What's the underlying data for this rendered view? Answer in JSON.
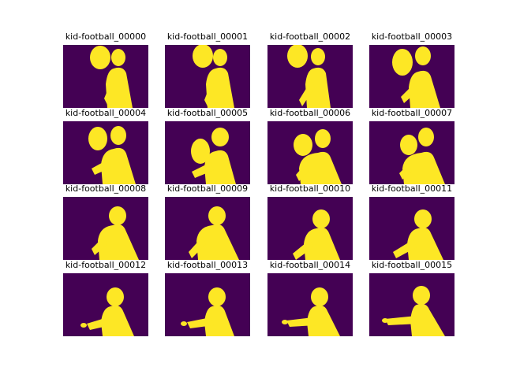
{
  "colors": {
    "background": "#440154",
    "foreground": "#fde725"
  },
  "frames": [
    {
      "title": "kid-football_00000",
      "pose": {
        "ball": [
          47,
          16,
          13,
          15
        ],
        "head": [
          70,
          16,
          9,
          11
        ],
        "body": [
          56,
          30,
          88,
          80
        ],
        "arm_to": [
          52,
          68
        ],
        "hand_to": null
      }
    },
    {
      "title": "kid-football_00001",
      "pose": {
        "ball": [
          48,
          14,
          13,
          15
        ],
        "head": [
          70,
          16,
          9,
          11
        ],
        "body": [
          54,
          30,
          88,
          80
        ],
        "arm_to": [
          50,
          70
        ],
        "hand_to": null
      }
    },
    {
      "title": "kid-football_00002",
      "pose": {
        "ball": [
          38,
          14,
          13,
          15
        ],
        "head": [
          64,
          15,
          9,
          11
        ],
        "body": [
          50,
          30,
          80,
          80
        ],
        "arm_to": [
          40,
          70
        ],
        "hand_to": null
      }
    },
    {
      "title": "kid-football_00003",
      "pose": {
        "ball": [
          42,
          22,
          13,
          17
        ],
        "head": [
          68,
          14,
          10,
          12
        ],
        "body": [
          52,
          34,
          90,
          80
        ],
        "arm_to": [
          40,
          66
        ],
        "hand_to": null
      }
    },
    {
      "title": "kid-football_00004",
      "pose": {
        "ball": [
          44,
          22,
          12,
          15
        ],
        "head": [
          70,
          18,
          10,
          12
        ],
        "body": [
          50,
          35,
          92,
          80
        ],
        "arm_to": [
          36,
          60
        ],
        "hand_to": null
      }
    },
    {
      "title": "kid-football_00005",
      "pose": {
        "ball": [
          45,
          38,
          12,
          16
        ],
        "head": [
          70,
          20,
          11,
          12
        ],
        "body": [
          52,
          38,
          90,
          80
        ],
        "arm_to": [
          34,
          64
        ],
        "hand_to": null
      }
    },
    {
      "title": "kid-football_00006",
      "pose": {
        "ball": [
          45,
          30,
          12,
          14
        ],
        "head": [
          70,
          22,
          10,
          12
        ],
        "body": [
          42,
          40,
          94,
          80
        ],
        "arm_to": [
          36,
          68
        ],
        "hand_to": null
      }
    },
    {
      "title": "kid-football_00007",
      "pose": {
        "ball": [
          50,
          30,
          11,
          13
        ],
        "head": [
          72,
          20,
          10,
          12
        ],
        "body": [
          44,
          40,
          96,
          80
        ],
        "arm_to": [
          38,
          66
        ],
        "hand_to": null
      }
    },
    {
      "title": "kid-football_00008",
      "pose": {
        "ball": null,
        "head": [
          69,
          24,
          11,
          12
        ],
        "body": [
          46,
          36,
          96,
          80
        ],
        "arm_to": [
          36,
          66
        ],
        "hand_to": null
      }
    },
    {
      "title": "kid-football_00009",
      "pose": {
        "ball": null,
        "head": [
          66,
          24,
          11,
          12
        ],
        "body": [
          42,
          36,
          94,
          80
        ],
        "arm_to": [
          30,
          70
        ],
        "hand_to": null
      }
    },
    {
      "title": "kid-football_00010",
      "pose": {
        "ball": null,
        "head": [
          68,
          28,
          11,
          12
        ],
        "body": [
          48,
          40,
          92,
          80
        ],
        "arm_to": [
          32,
          72
        ],
        "hand_to": null
      }
    },
    {
      "title": "kid-football_00011",
      "pose": {
        "ball": null,
        "head": [
          68,
          28,
          11,
          12
        ],
        "body": [
          50,
          40,
          94,
          80
        ],
        "arm_to": [
          30,
          70
        ],
        "hand_to": null
      }
    },
    {
      "title": "kid-football_00012",
      "pose": {
        "ball": null,
        "head": [
          66,
          30,
          11,
          12
        ],
        "body": [
          50,
          42,
          90,
          80
        ],
        "arm_to": [
          30,
          64
        ],
        "hand_to": [
          26,
          66
        ]
      }
    },
    {
      "title": "kid-football_00013",
      "pose": {
        "ball": null,
        "head": [
          66,
          30,
          11,
          12
        ],
        "body": [
          52,
          42,
          88,
          80
        ],
        "arm_to": [
          28,
          62
        ],
        "hand_to": [
          24,
          64
        ]
      }
    },
    {
      "title": "kid-football_00014",
      "pose": {
        "ball": null,
        "head": [
          66,
          30,
          11,
          12
        ],
        "body": [
          52,
          42,
          92,
          80
        ],
        "arm_to": [
          24,
          60
        ],
        "hand_to": [
          22,
          62
        ]
      }
    },
    {
      "title": "kid-football_00015",
      "pose": {
        "ball": null,
        "head": [
          66,
          28,
          11,
          12
        ],
        "body": [
          54,
          40,
          96,
          80
        ],
        "arm_to": [
          20,
          58
        ],
        "hand_to": [
          20,
          60
        ]
      }
    }
  ]
}
